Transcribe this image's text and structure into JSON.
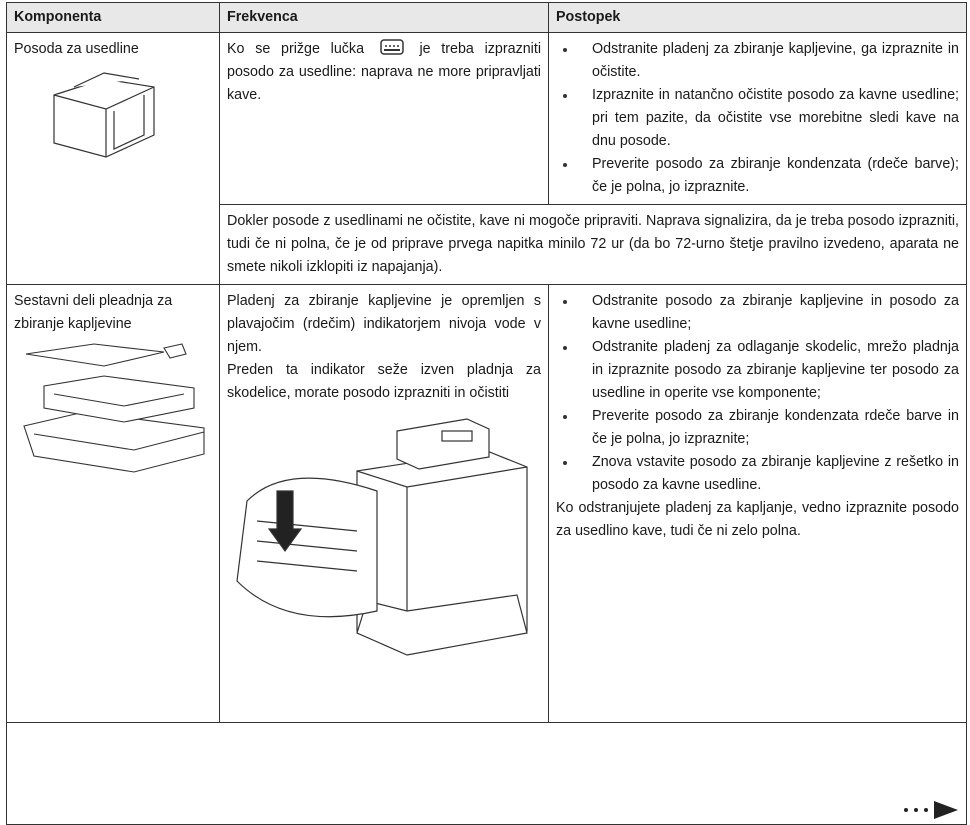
{
  "table": {
    "headers": [
      "Komponenta",
      "Frekvenca",
      "Postopek"
    ],
    "rows": [
      {
        "component": "Posoda za usedline",
        "frequency_before": "Ko se prižge lučka",
        "frequency_after": "je treba izprazniti posodo za usedline: naprava ne more pripravljati kave.",
        "procedure": [
          "Odstranite pladenj za zbiranje kapljevine, ga izpraznite in očistite.",
          "Izpraznite in natančno očistite posodo za kavne usedline; pri tem pazite, da očistite vse morebitne sledi kave na dnu posode.",
          "Preverite posodo za zbiranje kondenzata (rdeče barve); če je polna, jo izpraznite."
        ],
        "note": "Dokler posode z usedlinami ne očistite, kave ni mogoče pripraviti. Naprava signalizira, da je treba posodo izprazniti, tudi če ni polna, če je od priprave prvega napitka minilo 72 ur (da bo 72-urno štetje pravilno izvedeno, aparata ne smete nikoli izklopiti iz napajanja)."
      },
      {
        "component": "Sestavni deli pleadnja za zbiranje kapljevine",
        "frequency": [
          "Pladenj za zbiranje kapljevine je opremljen s plavajočim (rdečim) indikatorjem nivoja vode v njem.",
          "Preden ta indikator seže izven pladnja za skodelice, morate posodo izprazniti in očistiti"
        ],
        "procedure": [
          "Odstranite posodo za zbiranje kapljevine in posodo za kavne usedline;",
          "Odstranite pladenj za odlaganje skodelic, mrežo pladnja in izpraznite posodo za zbiranje kapljevine ter posodo za usedline in operite vse komponente;",
          "Preverite posodo za zbiranje kondenzata rdeče barve in če je polna, jo izpraznite;",
          "Znova vstavite posodo za zbiranje kapljevine z rešetko in posodo za kavne usedline."
        ],
        "procedure_note": "Ko odstranjujete pladenj za kapljanje, vedno izpraznite posodo za usedlino kave, tudi če ni zelo polna."
      }
    ]
  }
}
